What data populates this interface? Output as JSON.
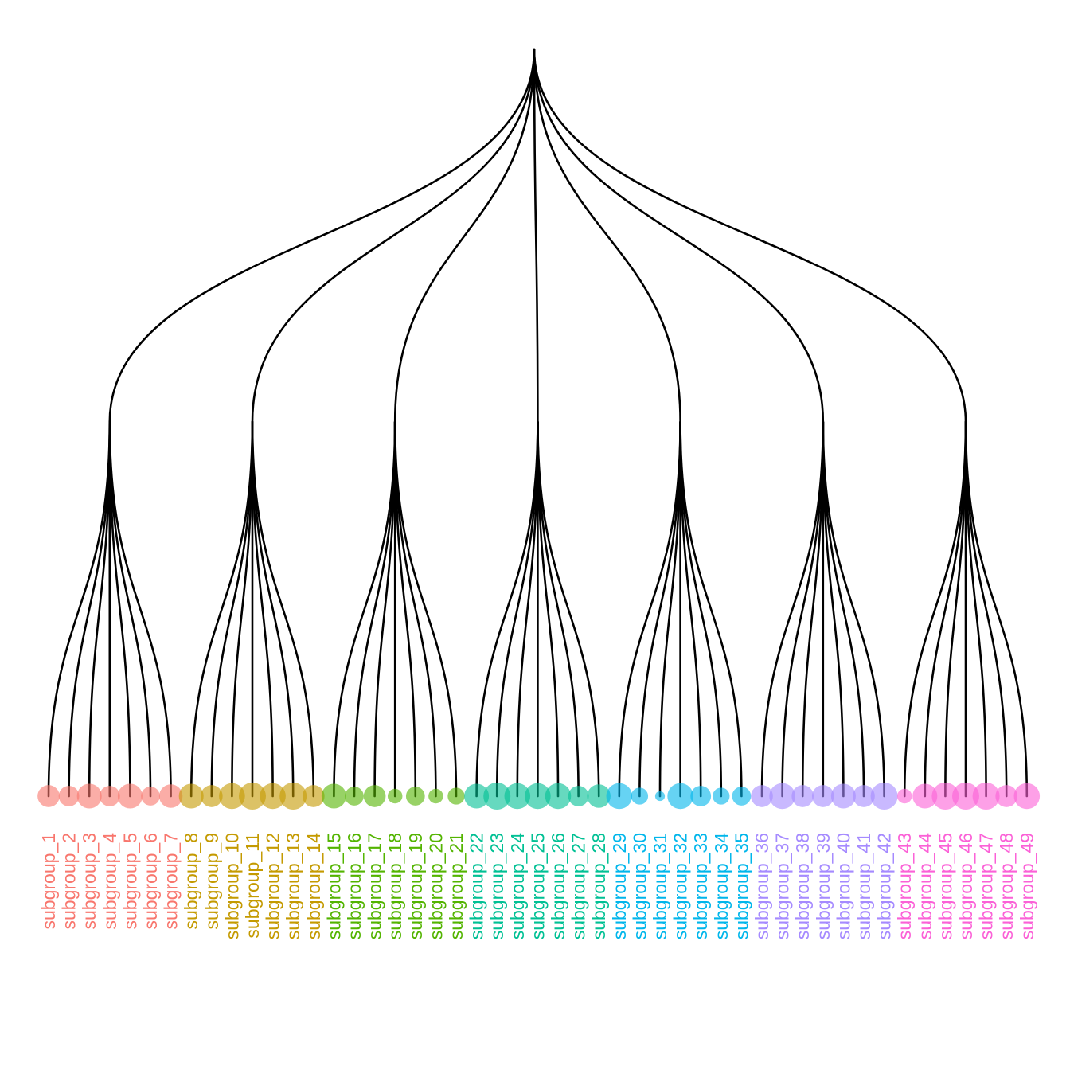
{
  "groups": [
    {
      "color": "#F8766D",
      "leaves": [
        {
          "label": "subgroup_1",
          "size": 6
        },
        {
          "label": "subgroup_2",
          "size": 5
        },
        {
          "label": "subgroup_3",
          "size": 8
        },
        {
          "label": "subgroup_4",
          "size": 5
        },
        {
          "label": "subgroup_5",
          "size": 8
        },
        {
          "label": "subgroup_6",
          "size": 4
        },
        {
          "label": "subgroup_7",
          "size": 7
        }
      ]
    },
    {
      "color": "#C49A00",
      "leaves": [
        {
          "label": "subgroup_8",
          "size": 8
        },
        {
          "label": "subgroup_9",
          "size": 6
        },
        {
          "label": "subgroup_10",
          "size": 9
        },
        {
          "label": "subgroup_11",
          "size": 10
        },
        {
          "label": "subgroup_12",
          "size": 9
        },
        {
          "label": "subgroup_13",
          "size": 10
        },
        {
          "label": "subgroup_14",
          "size": 6
        }
      ]
    },
    {
      "color": "#53B400",
      "leaves": [
        {
          "label": "subgroup_15",
          "size": 8
        },
        {
          "label": "subgroup_16",
          "size": 4
        },
        {
          "label": "subgroup_17",
          "size": 6
        },
        {
          "label": "subgroup_18",
          "size": 2
        },
        {
          "label": "subgroup_19",
          "size": 4
        },
        {
          "label": "subgroup_20",
          "size": 2
        },
        {
          "label": "subgroup_21",
          "size": 3
        }
      ]
    },
    {
      "color": "#00C094",
      "leaves": [
        {
          "label": "subgroup_22",
          "size": 8
        },
        {
          "label": "subgroup_23",
          "size": 10
        },
        {
          "label": "subgroup_24",
          "size": 9
        },
        {
          "label": "subgroup_25",
          "size": 9
        },
        {
          "label": "subgroup_26",
          "size": 9
        },
        {
          "label": "subgroup_27",
          "size": 5
        },
        {
          "label": "subgroup_28",
          "size": 7
        }
      ]
    },
    {
      "color": "#00B6EB",
      "leaves": [
        {
          "label": "subgroup_29",
          "size": 9
        },
        {
          "label": "subgroup_30",
          "size": 3
        },
        {
          "label": "subgroup_31",
          "size": 0.5
        },
        {
          "label": "subgroup_32",
          "size": 9
        },
        {
          "label": "subgroup_33",
          "size": 5
        },
        {
          "label": "subgroup_34",
          "size": 3
        },
        {
          "label": "subgroup_35",
          "size": 4
        }
      ]
    },
    {
      "color": "#A58AFF",
      "leaves": [
        {
          "label": "subgroup_36",
          "size": 6
        },
        {
          "label": "subgroup_37",
          "size": 9
        },
        {
          "label": "subgroup_38",
          "size": 6
        },
        {
          "label": "subgroup_39",
          "size": 6
        },
        {
          "label": "subgroup_40",
          "size": 8
        },
        {
          "label": "subgroup_41",
          "size": 6
        },
        {
          "label": "subgroup_42",
          "size": 10
        }
      ]
    },
    {
      "color": "#FB61D7",
      "leaves": [
        {
          "label": "subgroup_43",
          "size": 2
        },
        {
          "label": "subgroup_44",
          "size": 8
        },
        {
          "label": "subgroup_45",
          "size": 10
        },
        {
          "label": "subgroup_46",
          "size": 10
        },
        {
          "label": "subgroup_47",
          "size": 10
        },
        {
          "label": "subgroup_48",
          "size": 6
        },
        {
          "label": "subgroup_49",
          "size": 9
        }
      ]
    }
  ]
}
